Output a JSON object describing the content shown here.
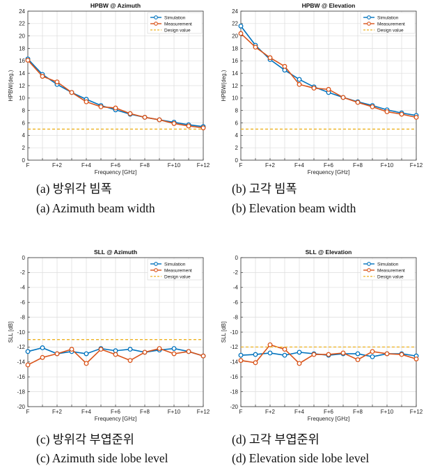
{
  "chart_data": [
    {
      "type": "line",
      "title": "HPBW @ Azimuth",
      "xlabel": "Frequency [GHz]",
      "ylabel": "HPBW(deg.)",
      "x_tick_labels": [
        "F",
        "",
        "F+2",
        "",
        "F+4",
        "",
        "F+6",
        "",
        "F+8",
        "",
        "F+10",
        "",
        "F+12"
      ],
      "x": [
        0,
        1,
        2,
        3,
        4,
        5,
        6,
        7,
        8,
        9,
        10,
        11,
        12
      ],
      "ylim": [
        0,
        24
      ],
      "yticks": [
        0,
        2,
        4,
        6,
        8,
        10,
        12,
        14,
        16,
        18,
        20,
        22,
        24
      ],
      "grid": true,
      "legend_position": "top-right",
      "series": [
        {
          "name": "Simulation",
          "color": "#0072BD",
          "style": "line-marker",
          "values": [
            16.3,
            13.8,
            12.2,
            10.9,
            9.8,
            8.8,
            8.1,
            7.4,
            6.9,
            6.5,
            6.1,
            5.7,
            5.4
          ]
        },
        {
          "name": "Measurement",
          "color": "#D95319",
          "style": "line-marker",
          "values": [
            16.1,
            13.5,
            12.6,
            10.9,
            9.4,
            8.6,
            8.4,
            7.5,
            6.9,
            6.5,
            5.9,
            5.5,
            5.2
          ]
        },
        {
          "name": "Design value",
          "color": "#EDB120",
          "style": "dashed",
          "values": [
            5,
            5,
            5,
            5,
            5,
            5,
            5,
            5,
            5,
            5,
            5,
            5,
            5
          ]
        }
      ]
    },
    {
      "type": "line",
      "title": "HPBW @ Elevation",
      "xlabel": "Frequency [GHz]",
      "ylabel": "HPBW(deg.)",
      "x_tick_labels": [
        "F",
        "",
        "F+2",
        "",
        "F+4",
        "",
        "F+6",
        "",
        "F+8",
        "",
        "F+10",
        "",
        "F+12"
      ],
      "x": [
        0,
        1,
        2,
        3,
        4,
        5,
        6,
        7,
        8,
        9,
        10,
        11,
        12
      ],
      "ylim": [
        0,
        24
      ],
      "yticks": [
        0,
        2,
        4,
        6,
        8,
        10,
        12,
        14,
        16,
        18,
        20,
        22,
        24
      ],
      "grid": true,
      "legend_position": "top-right",
      "series": [
        {
          "name": "Simulation",
          "color": "#0072BD",
          "style": "line-marker",
          "values": [
            21.6,
            18.5,
            16.2,
            14.5,
            13.0,
            11.8,
            10.9,
            10.1,
            9.4,
            8.8,
            8.1,
            7.6,
            7.2
          ]
        },
        {
          "name": "Measurement",
          "color": "#D95319",
          "style": "line-marker",
          "values": [
            20.4,
            18.2,
            16.5,
            15.1,
            12.2,
            11.6,
            11.4,
            10.1,
            9.3,
            8.6,
            7.8,
            7.4,
            6.9
          ]
        },
        {
          "name": "Design value",
          "color": "#EDB120",
          "style": "dashed",
          "values": [
            5,
            5,
            5,
            5,
            5,
            5,
            5,
            5,
            5,
            5,
            5,
            5,
            5
          ]
        }
      ]
    },
    {
      "type": "line",
      "title": "SLL @ Azimuth",
      "xlabel": "Frequency [GHz]",
      "ylabel": "SLL [dB]",
      "x_tick_labels": [
        "F",
        "",
        "F+2",
        "",
        "F+4",
        "",
        "F+6",
        "",
        "F+8",
        "",
        "F+10",
        "",
        "F+12"
      ],
      "x": [
        0,
        1,
        2,
        3,
        4,
        5,
        6,
        7,
        8,
        9,
        10,
        11,
        12
      ],
      "ylim": [
        -20,
        0
      ],
      "yticks": [
        -20,
        -18,
        -16,
        -14,
        -12,
        -10,
        -8,
        -6,
        -4,
        -2,
        0
      ],
      "grid": true,
      "legend_position": "top-right",
      "series": [
        {
          "name": "Simulation",
          "color": "#0072BD",
          "style": "line-marker",
          "values": [
            -12.6,
            -12.1,
            -12.9,
            -12.6,
            -12.9,
            -12.2,
            -12.5,
            -12.3,
            -12.7,
            -12.4,
            -12.2,
            -12.6,
            -13.2
          ]
        },
        {
          "name": "Measurement",
          "color": "#D95319",
          "style": "line-marker",
          "values": [
            -14.4,
            -13.4,
            -12.9,
            -12.3,
            -14.2,
            -12.3,
            -13.0,
            -13.8,
            -12.7,
            -12.2,
            -12.9,
            -12.6,
            -13.2
          ]
        },
        {
          "name": "Design value",
          "color": "#EDB120",
          "style": "dashed",
          "values": [
            -11,
            -11,
            -11,
            -11,
            -11,
            -11,
            -11,
            -11,
            -11,
            -11,
            -11,
            -11,
            -11
          ]
        }
      ]
    },
    {
      "type": "line",
      "title": "SLL @ Elevation",
      "xlabel": "Frequency [GHz]",
      "ylabel": "SLL [dB]",
      "x_tick_labels": [
        "F",
        "",
        "F+2",
        "",
        "F+4",
        "",
        "F+6",
        "",
        "F+8",
        "",
        "F+10",
        "",
        "F+12"
      ],
      "x": [
        0,
        1,
        2,
        3,
        4,
        5,
        6,
        7,
        8,
        9,
        10,
        11,
        12
      ],
      "ylim": [
        -20,
        0
      ],
      "yticks": [
        -20,
        -18,
        -16,
        -14,
        -12,
        -10,
        -8,
        -6,
        -4,
        -2,
        0
      ],
      "grid": true,
      "legend_position": "top-right",
      "series": [
        {
          "name": "Simulation",
          "color": "#0072BD",
          "style": "line-marker",
          "values": [
            -13.1,
            -13.0,
            -12.8,
            -13.1,
            -12.7,
            -12.9,
            -13.1,
            -12.9,
            -12.9,
            -13.3,
            -12.9,
            -12.9,
            -13.2
          ]
        },
        {
          "name": "Measurement",
          "color": "#D95319",
          "style": "line-marker",
          "values": [
            -13.8,
            -14.1,
            -11.7,
            -12.3,
            -14.2,
            -13.0,
            -13.0,
            -12.8,
            -13.7,
            -12.6,
            -12.9,
            -13.0,
            -13.6
          ]
        },
        {
          "name": "Design value",
          "color": "#EDB120",
          "style": "dashed",
          "values": [
            -12,
            -12,
            -12,
            -12,
            -12,
            -12,
            -12,
            -12,
            -12,
            -12,
            -12,
            -12,
            -12
          ]
        }
      ]
    }
  ],
  "captions": [
    {
      "korean": "(a) 방위각 빔폭",
      "english": "(a) Azimuth beam width"
    },
    {
      "korean": "(b) 고각 빔폭",
      "english": "(b) Elevation beam width"
    },
    {
      "korean": "(c) 방위각 부엽준위",
      "english": "(c) Azimuth side lobe level"
    },
    {
      "korean": "(d) 고각 부엽준위",
      "english": "(d) Elevation side lobe level"
    }
  ]
}
